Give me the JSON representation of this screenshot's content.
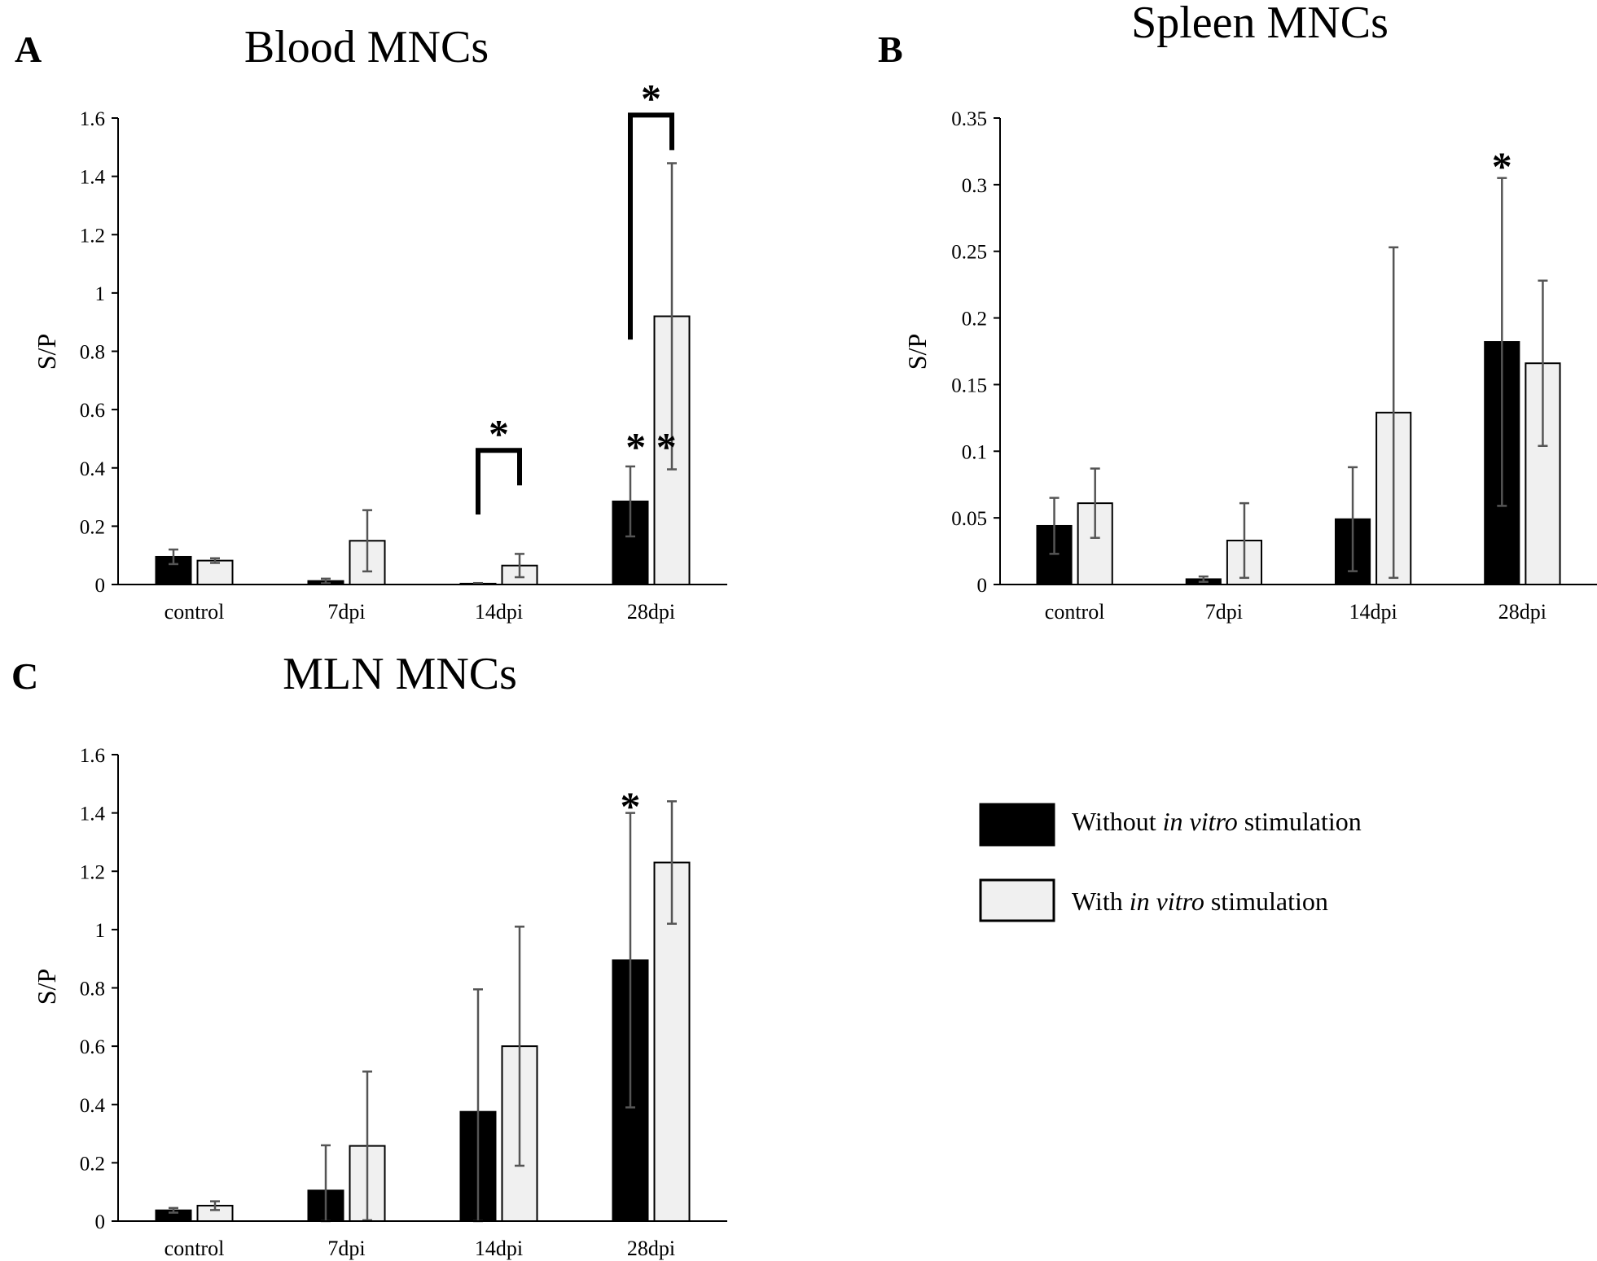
{
  "legend": {
    "items": [
      {
        "prefix": "Without ",
        "italic": "in vitro",
        "suffix": " stimulation",
        "color": "#000000"
      },
      {
        "prefix": "With ",
        "italic": "in vitro",
        "suffix": " stimulation",
        "color": "#f0f0f0"
      }
    ]
  },
  "chart_data": [
    {
      "panel": "A",
      "type": "bar",
      "title": "Blood MNCs",
      "ylabel": "S/P",
      "xlabel": "",
      "ylim": [
        0,
        1.6
      ],
      "yticks": [
        0,
        0.2,
        0.4,
        0.6,
        0.8,
        1,
        1.2,
        1.4,
        1.6
      ],
      "ytick_labels": [
        "0",
        "0.2",
        "0.4",
        "0.6",
        "0.8",
        "1",
        "1.2",
        "1.4",
        "1.6"
      ],
      "categories": [
        "control",
        "7dpi",
        "14dpi",
        "28dpi"
      ],
      "series": [
        {
          "name": "Without in vitro stimulation",
          "color": "#000000",
          "values": [
            0.095,
            0.012,
            0.003,
            0.285
          ],
          "errors": [
            0.025,
            0.008,
            0.002,
            0.12
          ]
        },
        {
          "name": "With in vitro stimulation",
          "color": "#f0f0f0",
          "values": [
            0.082,
            0.15,
            0.065,
            0.92
          ],
          "errors": [
            0.008,
            0.105,
            0.04,
            0.525
          ]
        }
      ],
      "annotations": [
        {
          "type": "star",
          "text": "**",
          "category": 3,
          "y": 0.51
        },
        {
          "type": "bracket",
          "text": "*",
          "category": 2,
          "top": 0.46,
          "left_bottom": 0.24,
          "right_bottom": 0.34
        },
        {
          "type": "bracket",
          "text": "*",
          "category": 3,
          "top": 1.61,
          "left_bottom": 0.84,
          "right_bottom": 1.49
        }
      ]
    },
    {
      "panel": "B",
      "type": "bar",
      "title": "Spleen MNCs",
      "ylabel": "S/P",
      "xlabel": "",
      "ylim": [
        0,
        0.35
      ],
      "yticks": [
        0,
        0.05,
        0.1,
        0.15,
        0.2,
        0.25,
        0.3,
        0.35
      ],
      "ytick_labels": [
        "0",
        "0.05",
        "0.1",
        "0.15",
        "0.2",
        "0.25",
        "0.3",
        "0.35"
      ],
      "categories": [
        "control",
        "7dpi",
        "14dpi",
        "28dpi"
      ],
      "series": [
        {
          "name": "Without in vitro stimulation",
          "color": "#000000",
          "values": [
            0.044,
            0.004,
            0.049,
            0.182
          ],
          "errors": [
            0.021,
            0.002,
            0.039,
            0.123
          ]
        },
        {
          "name": "With in vitro stimulation",
          "color": "#f0f0f0",
          "values": [
            0.061,
            0.033,
            0.129,
            0.166
          ],
          "errors": [
            0.026,
            0.028,
            0.124,
            0.062
          ]
        }
      ],
      "annotations": [
        {
          "type": "star",
          "text": "*",
          "category": 3,
          "y": 0.322
        }
      ]
    },
    {
      "panel": "C",
      "type": "bar",
      "title": "MLN MNCs",
      "ylabel": "S/P",
      "xlabel": "",
      "ylim": [
        0,
        1.6
      ],
      "yticks": [
        0,
        0.2,
        0.4,
        0.6,
        0.8,
        1,
        1.2,
        1.4,
        1.6
      ],
      "ytick_labels": [
        "0",
        "0.2",
        "0.4",
        "0.6",
        "0.8",
        "1",
        "1.2",
        "1.4",
        "1.6"
      ],
      "categories": [
        "control",
        "7dpi",
        "14dpi",
        "28dpi"
      ],
      "series": [
        {
          "name": "Without in vitro stimulation",
          "color": "#000000",
          "values": [
            0.037,
            0.105,
            0.375,
            0.895
          ],
          "errors": [
            0.008,
            0.155,
            0.42,
            0.505
          ]
        },
        {
          "name": "With in vitro stimulation",
          "color": "#f0f0f0",
          "values": [
            0.053,
            0.258,
            0.6,
            1.23
          ],
          "errors": [
            0.015,
            0.255,
            0.41,
            0.21
          ]
        }
      ],
      "annotations": [
        {
          "type": "star",
          "text": "*",
          "category": 3,
          "y": 1.46
        }
      ]
    }
  ]
}
